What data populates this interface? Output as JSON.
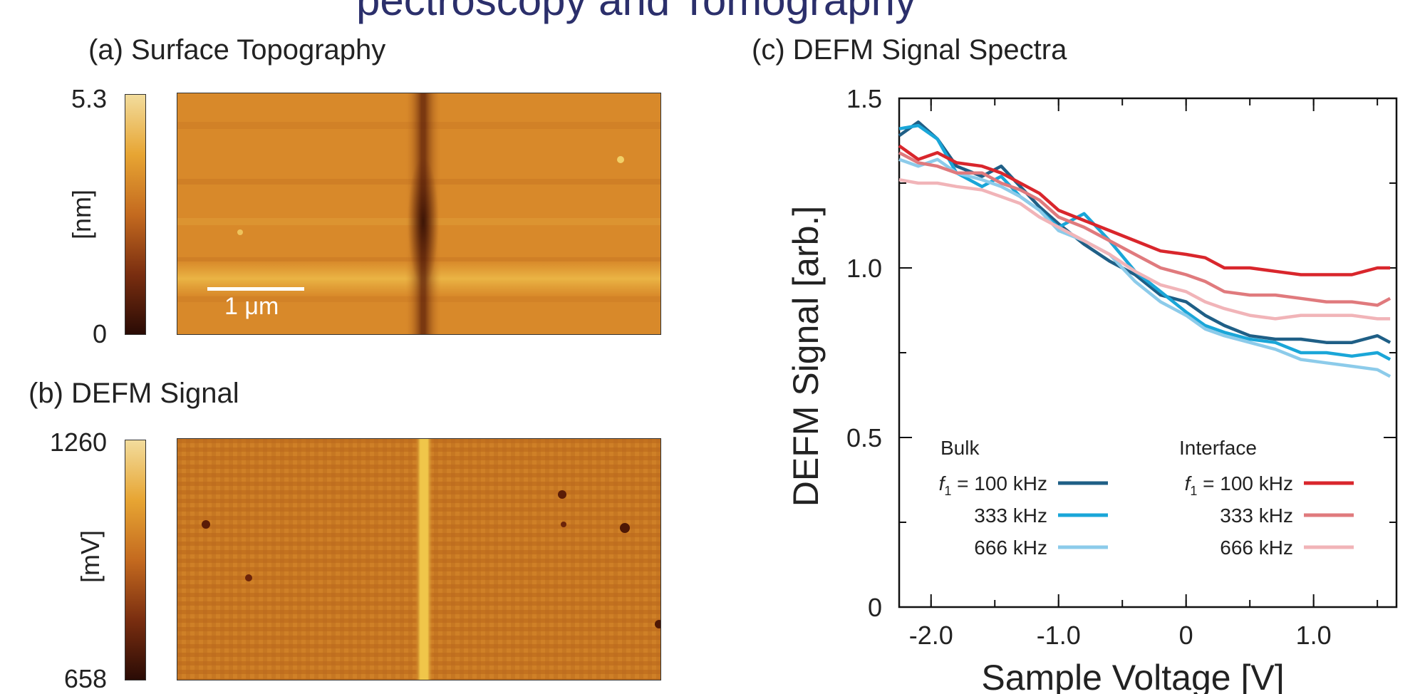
{
  "panels": {
    "a": {
      "title": "(a) Surface Topography",
      "colorbar_max": "5.3",
      "colorbar_min": "0",
      "unit": "[nm]",
      "scale_bar": "1 μm",
      "colormap": [
        "#2a0b05",
        "#7a2e10",
        "#c46a1f",
        "#e7a533",
        "#f2dc9c"
      ]
    },
    "b": {
      "title": "(b) DEFM Signal",
      "colorbar_max": "1260",
      "colorbar_min": "658",
      "unit": "[mV]"
    },
    "c": {
      "title": "(c) DEFM Signal Spectra"
    }
  },
  "top_text": "pectroscopy and Tomography",
  "chart_data": {
    "type": "line",
    "xlabel": "Sample Voltage [V]",
    "ylabel": "DEFM Signal [arb.]",
    "xlim": [
      -2.25,
      1.65
    ],
    "ylim": [
      0,
      1.5
    ],
    "xticks": [
      -2.0,
      -1.0,
      0,
      1.0
    ],
    "xtick_labels": [
      "-2.0",
      "-1.0",
      "0",
      "1.0"
    ],
    "yticks": [
      0,
      0.5,
      1.0,
      1.5
    ],
    "ytick_labels": [
      "0",
      "0.5",
      "1.0",
      "1.5"
    ],
    "grid": false,
    "legend": {
      "bulk_title": "Bulk",
      "interface_title": "Interface",
      "f_symbol": "f",
      "f_subscript": "1",
      "first_prefix": "= 100 kHz",
      "labels": [
        "100 kHz",
        "333 kHz",
        "666 kHz"
      ]
    },
    "series": [
      {
        "group": "Bulk",
        "freq": "100 kHz",
        "color": "#1f5f86",
        "points": [
          [
            -2.25,
            1.39
          ],
          [
            -2.1,
            1.43
          ],
          [
            -1.95,
            1.38
          ],
          [
            -1.8,
            1.3
          ],
          [
            -1.6,
            1.27
          ],
          [
            -1.45,
            1.3
          ],
          [
            -1.3,
            1.24
          ],
          [
            -1.15,
            1.18
          ],
          [
            -1.0,
            1.13
          ],
          [
            -0.8,
            1.07
          ],
          [
            -0.6,
            1.02
          ],
          [
            -0.4,
            0.98
          ],
          [
            -0.2,
            0.92
          ],
          [
            0.0,
            0.9
          ],
          [
            0.15,
            0.86
          ],
          [
            0.3,
            0.83
          ],
          [
            0.5,
            0.8
          ],
          [
            0.7,
            0.79
          ],
          [
            0.9,
            0.79
          ],
          [
            1.1,
            0.78
          ],
          [
            1.3,
            0.78
          ],
          [
            1.5,
            0.8
          ],
          [
            1.6,
            0.78
          ]
        ]
      },
      {
        "group": "Bulk",
        "freq": "333 kHz",
        "color": "#1aa6d8",
        "points": [
          [
            -2.25,
            1.41
          ],
          [
            -2.1,
            1.42
          ],
          [
            -1.95,
            1.38
          ],
          [
            -1.8,
            1.28
          ],
          [
            -1.6,
            1.24
          ],
          [
            -1.45,
            1.27
          ],
          [
            -1.3,
            1.21
          ],
          [
            -1.15,
            1.17
          ],
          [
            -1.0,
            1.12
          ],
          [
            -0.8,
            1.16
          ],
          [
            -0.6,
            1.08
          ],
          [
            -0.4,
            0.99
          ],
          [
            -0.2,
            0.93
          ],
          [
            0.0,
            0.87
          ],
          [
            0.15,
            0.83
          ],
          [
            0.3,
            0.81
          ],
          [
            0.5,
            0.79
          ],
          [
            0.7,
            0.78
          ],
          [
            0.9,
            0.75
          ],
          [
            1.1,
            0.75
          ],
          [
            1.3,
            0.74
          ],
          [
            1.5,
            0.75
          ],
          [
            1.6,
            0.73
          ]
        ]
      },
      {
        "group": "Bulk",
        "freq": "666 kHz",
        "color": "#8ccbea",
        "points": [
          [
            -2.25,
            1.32
          ],
          [
            -2.1,
            1.3
          ],
          [
            -1.95,
            1.32
          ],
          [
            -1.8,
            1.28
          ],
          [
            -1.6,
            1.26
          ],
          [
            -1.45,
            1.24
          ],
          [
            -1.3,
            1.21
          ],
          [
            -1.15,
            1.17
          ],
          [
            -1.0,
            1.11
          ],
          [
            -0.8,
            1.08
          ],
          [
            -0.6,
            1.04
          ],
          [
            -0.4,
            0.96
          ],
          [
            -0.2,
            0.9
          ],
          [
            0.0,
            0.86
          ],
          [
            0.15,
            0.82
          ],
          [
            0.3,
            0.8
          ],
          [
            0.5,
            0.78
          ],
          [
            0.7,
            0.76
          ],
          [
            0.9,
            0.73
          ],
          [
            1.1,
            0.72
          ],
          [
            1.3,
            0.71
          ],
          [
            1.5,
            0.7
          ],
          [
            1.6,
            0.68
          ]
        ]
      },
      {
        "group": "Interface",
        "freq": "100 kHz",
        "color": "#d9262c",
        "points": [
          [
            -2.25,
            1.36
          ],
          [
            -2.1,
            1.32
          ],
          [
            -1.95,
            1.34
          ],
          [
            -1.8,
            1.31
          ],
          [
            -1.6,
            1.3
          ],
          [
            -1.45,
            1.28
          ],
          [
            -1.3,
            1.25
          ],
          [
            -1.15,
            1.22
          ],
          [
            -1.0,
            1.17
          ],
          [
            -0.8,
            1.14
          ],
          [
            -0.6,
            1.11
          ],
          [
            -0.4,
            1.08
          ],
          [
            -0.2,
            1.05
          ],
          [
            0.0,
            1.04
          ],
          [
            0.15,
            1.03
          ],
          [
            0.3,
            1.0
          ],
          [
            0.5,
            1.0
          ],
          [
            0.7,
            0.99
          ],
          [
            0.9,
            0.98
          ],
          [
            1.1,
            0.98
          ],
          [
            1.3,
            0.98
          ],
          [
            1.5,
            1.0
          ],
          [
            1.6,
            1.0
          ]
        ]
      },
      {
        "group": "Interface",
        "freq": "333 kHz",
        "color": "#e07a7d",
        "points": [
          [
            -2.25,
            1.34
          ],
          [
            -2.1,
            1.31
          ],
          [
            -1.95,
            1.3
          ],
          [
            -1.8,
            1.28
          ],
          [
            -1.6,
            1.28
          ],
          [
            -1.45,
            1.25
          ],
          [
            -1.3,
            1.23
          ],
          [
            -1.15,
            1.2
          ],
          [
            -1.0,
            1.15
          ],
          [
            -0.8,
            1.12
          ],
          [
            -0.6,
            1.08
          ],
          [
            -0.4,
            1.04
          ],
          [
            -0.2,
            1.0
          ],
          [
            0.0,
            0.98
          ],
          [
            0.15,
            0.96
          ],
          [
            0.3,
            0.93
          ],
          [
            0.5,
            0.92
          ],
          [
            0.7,
            0.92
          ],
          [
            0.9,
            0.91
          ],
          [
            1.1,
            0.9
          ],
          [
            1.3,
            0.9
          ],
          [
            1.5,
            0.89
          ],
          [
            1.6,
            0.91
          ]
        ]
      },
      {
        "group": "Interface",
        "freq": "666 kHz",
        "color": "#f1b4b8",
        "points": [
          [
            -2.25,
            1.26
          ],
          [
            -2.1,
            1.25
          ],
          [
            -1.95,
            1.25
          ],
          [
            -1.8,
            1.24
          ],
          [
            -1.6,
            1.23
          ],
          [
            -1.45,
            1.21
          ],
          [
            -1.3,
            1.19
          ],
          [
            -1.15,
            1.15
          ],
          [
            -1.0,
            1.12
          ],
          [
            -0.8,
            1.08
          ],
          [
            -0.6,
            1.04
          ],
          [
            -0.4,
            0.99
          ],
          [
            -0.2,
            0.95
          ],
          [
            0.0,
            0.93
          ],
          [
            0.15,
            0.9
          ],
          [
            0.3,
            0.88
          ],
          [
            0.5,
            0.86
          ],
          [
            0.7,
            0.85
          ],
          [
            0.9,
            0.86
          ],
          [
            1.1,
            0.86
          ],
          [
            1.3,
            0.86
          ],
          [
            1.5,
            0.85
          ],
          [
            1.6,
            0.85
          ]
        ]
      }
    ]
  }
}
